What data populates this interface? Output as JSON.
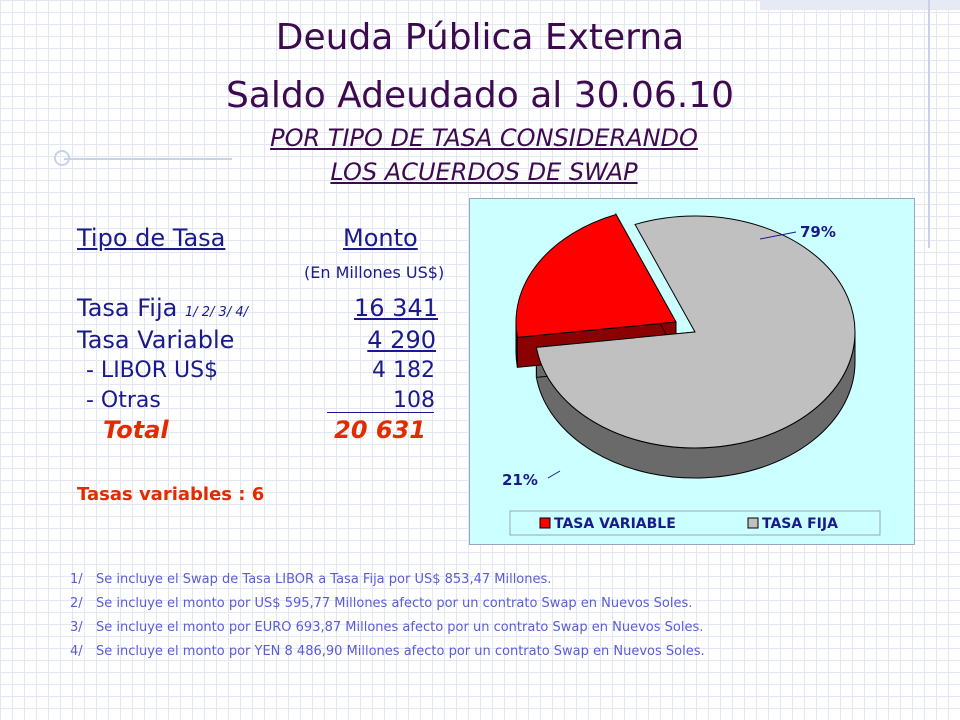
{
  "slide": {
    "title_line1": "Deuda Pública Externa",
    "title_line2": "Saldo Adeudado al 30.06.10",
    "subtitle_line1": "POR TIPO DE TASA CONSIDERANDO",
    "subtitle_line2": "LOS ACUERDOS DE SWAP"
  },
  "table": {
    "col_header_type": "Tipo de Tasa",
    "col_header_amount": "Monto",
    "units": "(En Millones US$)",
    "rows": [
      {
        "label": "Tasa Fija",
        "footnote_refs": "1/  2/  3/  4/",
        "value": "16 341"
      },
      {
        "label": "Tasa Variable",
        "value": "4 290"
      },
      {
        "label": "- LIBOR US$",
        "value": "4 182"
      },
      {
        "label": "- Otras",
        "value": "108"
      }
    ],
    "total_label": "Total",
    "total_value": "20 631"
  },
  "variable_rates": {
    "label": "Tasas variables :",
    "value": "6"
  },
  "footnotes": [
    {
      "num": "1/",
      "text": "Se incluye el Swap de Tasa LIBOR a Tasa Fija por US$ 853,47 Millones."
    },
    {
      "num": "2/",
      "text": "Se incluye el monto por US$ 595,77 Millones afecto por un contrato Swap en Nuevos Soles."
    },
    {
      "num": "3/",
      "text": "Se incluye el monto por EURO 693,87 Millones afecto por un contrato Swap en Nuevos Soles."
    },
    {
      "num": "4/",
      "text": "Se incluye el monto por YEN 8 486,90 Millones afecto por un contrato Swap en Nuevos Soles."
    }
  ],
  "chart_data": {
    "type": "pie",
    "style": "3d-exploded",
    "background": "#ccffff",
    "legend_position": "bottom",
    "slices": [
      {
        "name": "TASA VARIABLE",
        "value": 21,
        "label": "21%",
        "color": "#ff0000"
      },
      {
        "name": "TASA FIJA",
        "value": 79,
        "label": "79%",
        "color": "#c0c0c0"
      }
    ]
  }
}
